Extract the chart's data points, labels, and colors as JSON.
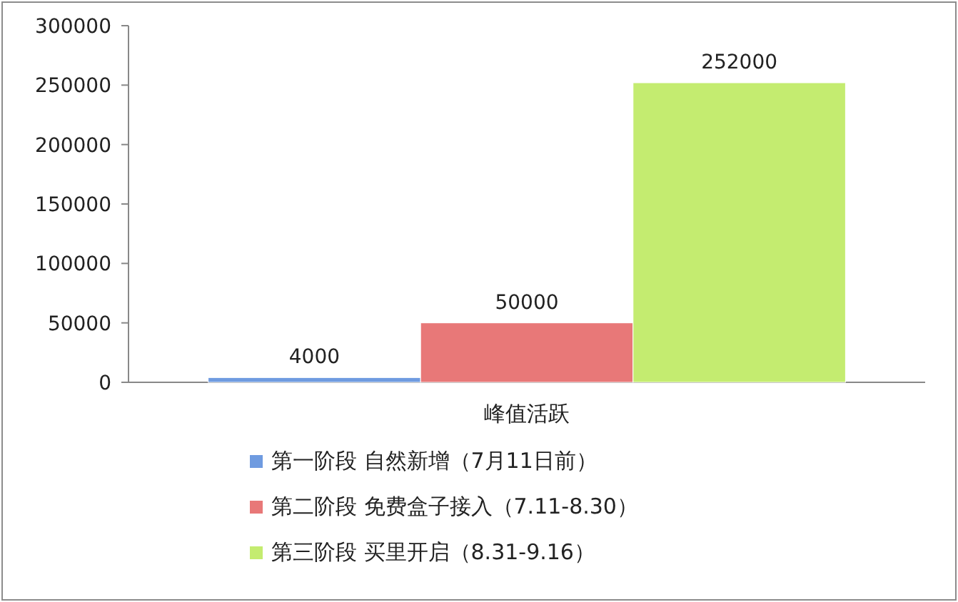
{
  "chart_data": {
    "type": "bar",
    "categories": [
      "峰值活跃"
    ],
    "series": [
      {
        "name": "第一阶段 自然新增（7月11日前）",
        "color": "#6f9be0",
        "values": [
          4000
        ]
      },
      {
        "name": "第二阶段 免费盒子接入（7.11-8.30）",
        "color": "#e87878",
        "values": [
          50000
        ]
      },
      {
        "name": "第三阶段 买里开启（8.31-9.16）",
        "color": "#c4ec70",
        "values": [
          252000
        ]
      }
    ],
    "ylim": [
      0,
      300000
    ],
    "yticks": [
      0,
      50000,
      100000,
      150000,
      200000,
      250000,
      300000
    ],
    "data_labels": true,
    "legend": "bottom",
    "grid": false
  }
}
